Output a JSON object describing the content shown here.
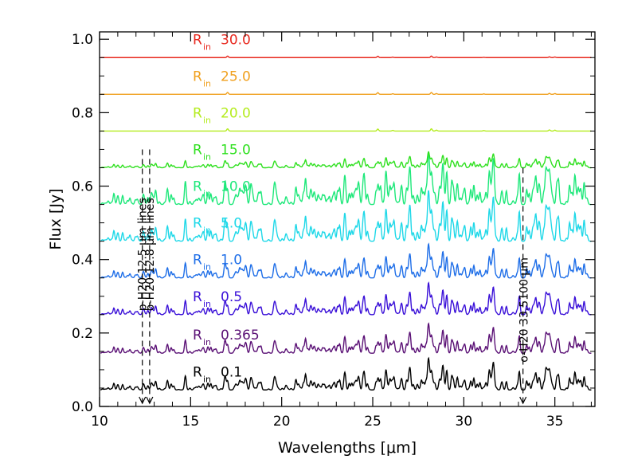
{
  "chart_data": {
    "type": "line",
    "title": "",
    "xlabel": "Wavelengths [μm]",
    "ylabel": "Flux [Jy]",
    "xlim": [
      10,
      37.2
    ],
    "ylim": [
      0,
      1.02
    ],
    "xticks": [
      10,
      15,
      20,
      25,
      30,
      35
    ],
    "xtick_labels": [
      "10",
      "15",
      "20",
      "25",
      "30",
      "35"
    ],
    "yticks": [
      0.0,
      0.2,
      0.4,
      0.6,
      0.8,
      1.0
    ],
    "ytick_labels": [
      "0.0",
      "0.2",
      "0.4",
      "0.6",
      "0.8",
      "1.0"
    ],
    "grid": false,
    "legend": "none",
    "spectrum_x_range": [
      10.05,
      37.0
    ],
    "series": [
      {
        "name": "R_in 0.1",
        "label_main": "R",
        "label_sub": "in",
        "label_value": "0.1",
        "color": "#000000",
        "baseline": 0.045,
        "line_strength": 0.03
      },
      {
        "name": "R_in 0.365",
        "label_main": "R",
        "label_sub": "in",
        "label_value": "0.365",
        "color": "#5a1075",
        "baseline": 0.145,
        "line_strength": 0.028
      },
      {
        "name": "R_in 0.5",
        "label_main": "R",
        "label_sub": "in",
        "label_value": "0.5",
        "color": "#3a10d8",
        "baseline": 0.25,
        "line_strength": 0.03
      },
      {
        "name": "R_in 1.0",
        "label_main": "R",
        "label_sub": "in",
        "label_value": "1.0",
        "color": "#1e6ee8",
        "baseline": 0.35,
        "line_strength": 0.032
      },
      {
        "name": "R_in 5.0",
        "label_main": "R",
        "label_sub": "in",
        "label_value": "5.0",
        "color": "#1ed8e8",
        "baseline": 0.45,
        "line_strength": 0.048
      },
      {
        "name": "R_in 10.0",
        "label_main": "R",
        "label_sub": "in",
        "label_value": "10.0",
        "color": "#1ee87a",
        "baseline": 0.55,
        "line_strength": 0.05
      },
      {
        "name": "R_in 15.0",
        "label_main": "R",
        "label_sub": "in",
        "label_value": "15.0",
        "color": "#2ee01e",
        "baseline": 0.65,
        "line_strength": 0.015
      },
      {
        "name": "R_in 20.0",
        "label_main": "R",
        "label_sub": "in",
        "label_value": "20.0",
        "color": "#b4ec1e",
        "baseline": 0.75,
        "line_strength": 0.006
      },
      {
        "name": "R_in 25.0",
        "label_main": "R",
        "label_sub": "in",
        "label_value": "25.0",
        "color": "#f0a01e",
        "baseline": 0.85,
        "line_strength": 0.005
      },
      {
        "name": "R_in 30.0",
        "label_main": "R",
        "label_sub": "in",
        "label_value": "30.0",
        "color": "#e8281e",
        "baseline": 0.95,
        "line_strength": 0.004
      }
    ],
    "annotations": [
      {
        "text": "p-H20 12.5 μm lines",
        "x": 12.35,
        "y_top": 0.7,
        "y_bottom": 0.0
      },
      {
        "text": "o-H20 12.8 μm lines",
        "x": 12.75,
        "y_top": 0.7,
        "y_bottom": 0.0
      },
      {
        "text": "o-H20 33.5100 μm",
        "x": 33.25,
        "y_top": 0.65,
        "y_bottom": 0.0
      }
    ]
  }
}
